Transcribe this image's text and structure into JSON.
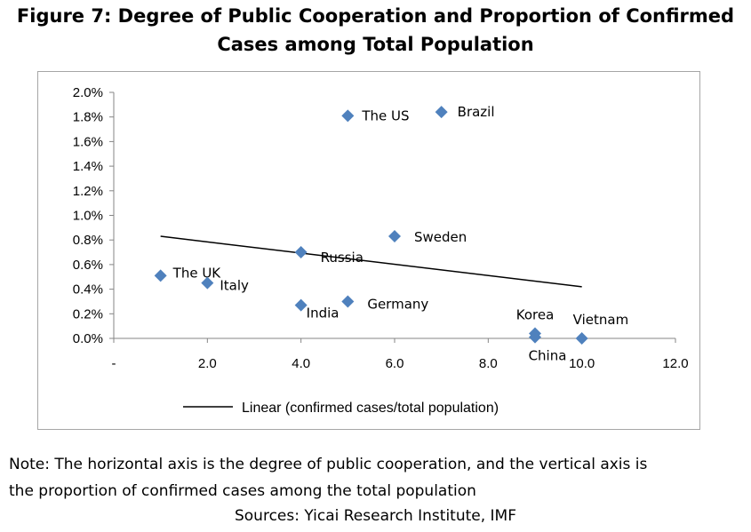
{
  "title_line1": "Figure 7: Degree of Public Cooperation and Proportion of Confirmed",
  "title_line2": "Cases among Total Population",
  "note_line1": "Note: The horizontal axis is the degree of public cooperation, and the vertical axis is",
  "note_line2": "the proportion of confirmed cases among the total population",
  "sources": "Sources: Yicai Research Institute, IMF",
  "colors": {
    "marker": "#4f81bd",
    "trendline": "#000000",
    "axis": "#868686",
    "frame": "#a6a6a6"
  },
  "chart_data": {
    "type": "scatter",
    "xlim": [
      0,
      12
    ],
    "ylim": [
      0,
      2.0
    ],
    "x_ticks": [
      0,
      2,
      4,
      6,
      8,
      10,
      12
    ],
    "x_tick_labels": [
      "-",
      "2.0",
      "4.0",
      "6.0",
      "8.0",
      "10.0",
      "12.0"
    ],
    "y_ticks": [
      0,
      0.2,
      0.4,
      0.6,
      0.8,
      1.0,
      1.2,
      1.4,
      1.6,
      1.8,
      2.0
    ],
    "y_tick_labels": [
      "0.0%",
      "0.2%",
      "0.4%",
      "0.6%",
      "0.8%",
      "1.0%",
      "1.2%",
      "1.4%",
      "1.6%",
      "1.8%",
      "2.0%"
    ],
    "grid": false,
    "legend_position": "bottom",
    "points": [
      {
        "label": "The US",
        "x": 5,
        "y": 1.81
      },
      {
        "label": "Brazil",
        "x": 7,
        "y": 1.84
      },
      {
        "label": "Sweden",
        "x": 6,
        "y": 0.83
      },
      {
        "label": "Russia",
        "x": 4,
        "y": 0.7
      },
      {
        "label": "The UK",
        "x": 1,
        "y": 0.51
      },
      {
        "label": "Italy",
        "x": 2,
        "y": 0.45
      },
      {
        "label": "India",
        "x": 4,
        "y": 0.27
      },
      {
        "label": "Germany",
        "x": 5,
        "y": 0.3
      },
      {
        "label": "Korea",
        "x": 9,
        "y": 0.04
      },
      {
        "label": "China",
        "x": 9,
        "y": 0.01
      },
      {
        "label": "Vietnam",
        "x": 10,
        "y": 0.0
      }
    ],
    "trendline": {
      "name": "Linear (confirmed cases/total population)",
      "x": [
        1,
        10
      ],
      "y": [
        0.83,
        0.42
      ]
    }
  }
}
